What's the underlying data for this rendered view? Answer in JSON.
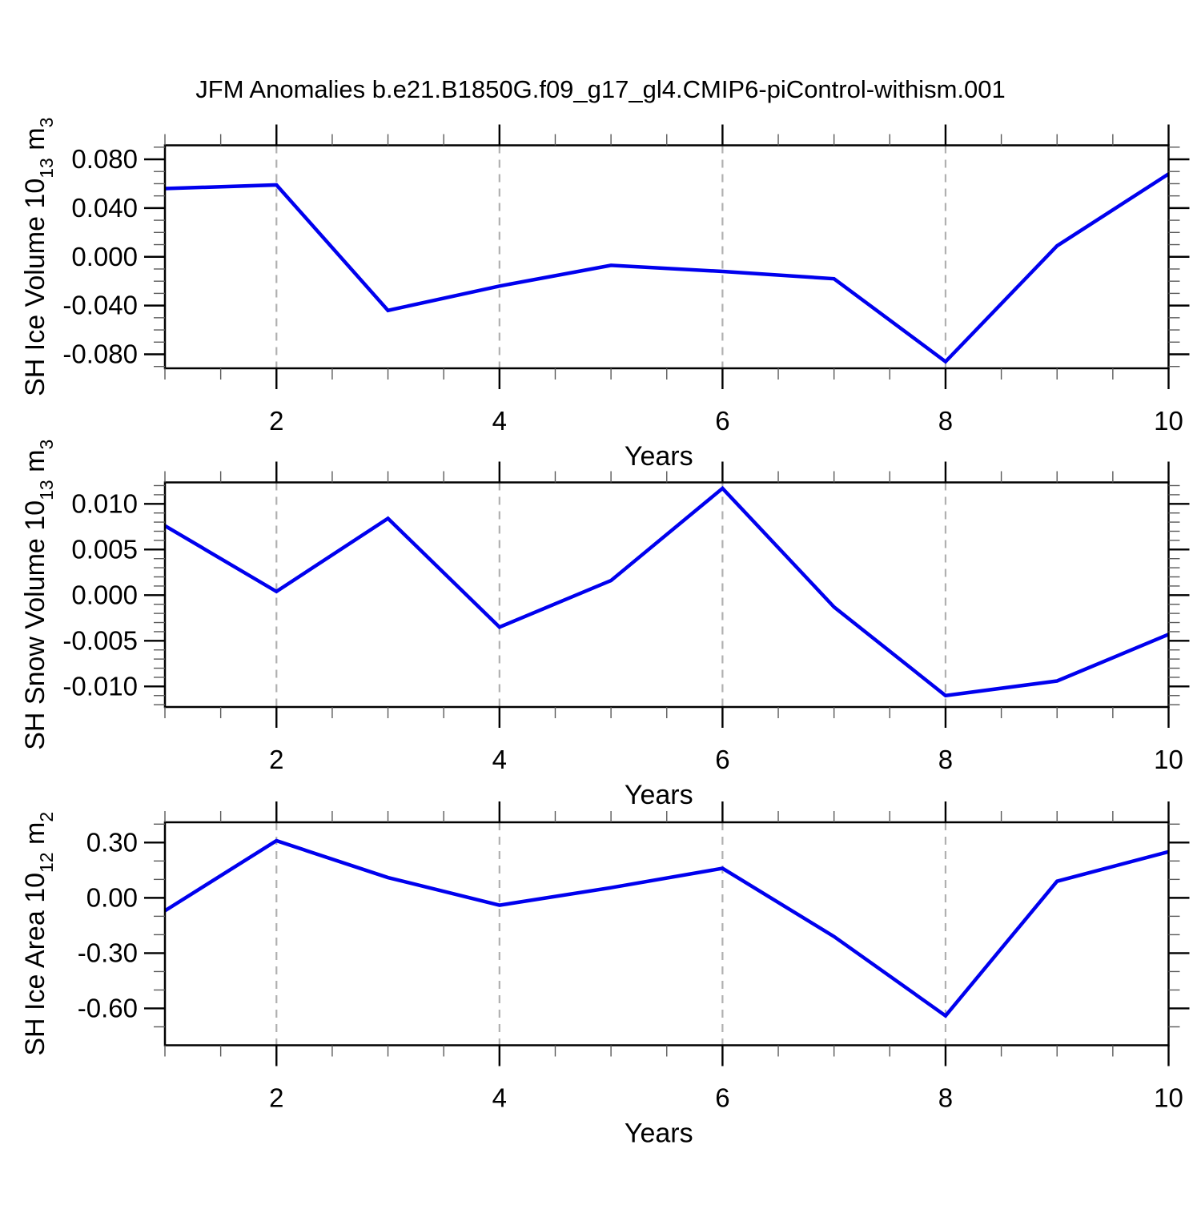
{
  "title": "JFM Anomalies b.e21.B1850G.f09_g17_gl4.CMIP6-piControl-withism.001",
  "colors": {
    "line": "#0000ee",
    "grid": "#b0b0b0",
    "axis": "#000000",
    "background": "#ffffff"
  },
  "chart_data": [
    {
      "id": "ice-volume",
      "type": "line",
      "title": "",
      "xlabel": "Years",
      "ylabel": "SH Ice Volume 10^13 m^3",
      "ylabel_parts": [
        {
          "t": "SH Ice Volume 10"
        },
        {
          "t": "13",
          "sup": true
        },
        {
          "t": " m"
        },
        {
          "t": "3",
          "sup": true
        }
      ],
      "x": [
        1,
        2,
        3,
        4,
        5,
        6,
        7,
        8,
        9,
        10
      ],
      "values": [
        0.056,
        0.059,
        -0.044,
        -0.024,
        -0.007,
        -0.012,
        -0.018,
        -0.086,
        0.009,
        0.068
      ],
      "xlim": [
        1,
        10
      ],
      "ylim": [
        -0.0915,
        0.0915
      ],
      "yticks": [
        {
          "v": 0.08,
          "label": "0.080"
        },
        {
          "v": 0.04,
          "label": "0.040"
        },
        {
          "v": 0.0,
          "label": "0.000"
        },
        {
          "v": -0.04,
          "label": "-0.040"
        },
        {
          "v": -0.08,
          "label": "-0.080"
        }
      ],
      "y_minor_step": 0.01,
      "xticks": [
        {
          "v": 2,
          "label": "2"
        },
        {
          "v": 4,
          "label": "4"
        },
        {
          "v": 6,
          "label": "6"
        },
        {
          "v": 8,
          "label": "8"
        },
        {
          "v": 10,
          "label": "10"
        }
      ],
      "x_minor_step": 0.5,
      "grid_x": [
        2,
        4,
        6,
        8
      ],
      "legend": "none"
    },
    {
      "id": "snow-volume",
      "type": "line",
      "title": "",
      "xlabel": "Years",
      "ylabel": "SH Snow Volume 10^13 m^3",
      "ylabel_parts": [
        {
          "t": "SH Snow Volume 10"
        },
        {
          "t": "13",
          "sup": true
        },
        {
          "t": " m"
        },
        {
          "t": "3",
          "sup": true
        }
      ],
      "x": [
        1,
        2,
        3,
        4,
        5,
        6,
        7,
        8,
        9,
        10
      ],
      "values": [
        0.0076,
        0.0004,
        0.0084,
        -0.0035,
        0.0016,
        0.0117,
        -0.0013,
        -0.011,
        -0.0094,
        -0.0043
      ],
      "xlim": [
        1,
        10
      ],
      "ylim": [
        -0.01225,
        0.01235
      ],
      "yticks": [
        {
          "v": 0.01,
          "label": "0.010"
        },
        {
          "v": 0.005,
          "label": "0.005"
        },
        {
          "v": 0.0,
          "label": "0.000"
        },
        {
          "v": -0.005,
          "label": "-0.005"
        },
        {
          "v": -0.01,
          "label": "-0.010"
        }
      ],
      "y_minor_step": 0.001,
      "xticks": [
        {
          "v": 2,
          "label": "2"
        },
        {
          "v": 4,
          "label": "4"
        },
        {
          "v": 6,
          "label": "6"
        },
        {
          "v": 8,
          "label": "8"
        },
        {
          "v": 10,
          "label": "10"
        }
      ],
      "x_minor_step": 0.5,
      "grid_x": [
        2,
        4,
        6,
        8
      ],
      "legend": "none"
    },
    {
      "id": "ice-area",
      "type": "line",
      "title": "",
      "xlabel": "Years",
      "ylabel": "SH Ice Area 10^12 m^2",
      "ylabel_parts": [
        {
          "t": "SH Ice Area 10"
        },
        {
          "t": "12",
          "sup": true
        },
        {
          "t": " m"
        },
        {
          "t": "2",
          "sup": true
        }
      ],
      "x": [
        1,
        2,
        3,
        4,
        5,
        6,
        7,
        8,
        9,
        10
      ],
      "values": [
        -0.07,
        0.31,
        0.11,
        -0.04,
        0.055,
        0.16,
        -0.21,
        -0.64,
        0.09,
        0.25
      ],
      "xlim": [
        1,
        10
      ],
      "ylim": [
        -0.8,
        0.41
      ],
      "yticks": [
        {
          "v": 0.3,
          "label": "0.30"
        },
        {
          "v": 0.0,
          "label": "0.00"
        },
        {
          "v": -0.3,
          "label": "-0.30"
        },
        {
          "v": -0.6,
          "label": "-0.60"
        }
      ],
      "y_minor_step": 0.1,
      "xticks": [
        {
          "v": 2,
          "label": "2"
        },
        {
          "v": 4,
          "label": "4"
        },
        {
          "v": 6,
          "label": "6"
        },
        {
          "v": 8,
          "label": "8"
        },
        {
          "v": 10,
          "label": "10"
        }
      ],
      "x_minor_step": 0.5,
      "grid_x": [
        2,
        4,
        6,
        8
      ],
      "legend": "none"
    }
  ]
}
